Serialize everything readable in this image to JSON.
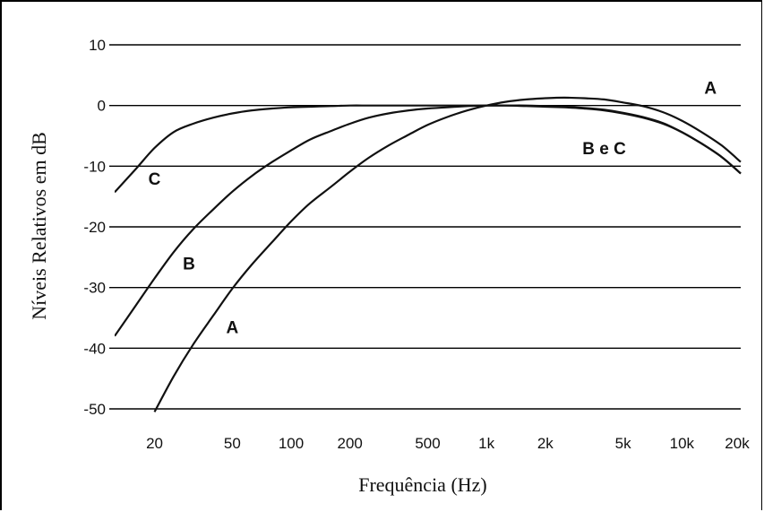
{
  "chart_data": {
    "type": "line",
    "title": "",
    "xlabel": "Frequência (Hz)",
    "ylabel": "Níveis Relativos em dB",
    "xscale": "log",
    "xlim": [
      12.5,
      20000
    ],
    "ylim": [
      -50,
      10
    ],
    "x_ticks": [
      {
        "value": 20,
        "label": "20"
      },
      {
        "value": 50,
        "label": "50"
      },
      {
        "value": 100,
        "label": "100"
      },
      {
        "value": 200,
        "label": "200"
      },
      {
        "value": 500,
        "label": "500"
      },
      {
        "value": 1000,
        "label": "1k"
      },
      {
        "value": 2000,
        "label": "2k"
      },
      {
        "value": 5000,
        "label": "5k"
      },
      {
        "value": 10000,
        "label": "10k"
      },
      {
        "value": 20000,
        "label": "20k"
      }
    ],
    "y_ticks": [
      10,
      0,
      -10,
      -20,
      -30,
      -40,
      -50
    ],
    "grid": "horizontal",
    "series": [
      {
        "name": "A",
        "x": [
          20,
          25,
          31.5,
          40,
          50,
          63,
          80,
          100,
          125,
          160,
          200,
          250,
          315,
          400,
          500,
          630,
          800,
          1000,
          1250,
          1600,
          2000,
          2500,
          3150,
          4000,
          5000,
          6300,
          8000,
          10000,
          12500,
          16000,
          20000
        ],
        "y": [
          -50.5,
          -44.7,
          -39.4,
          -34.6,
          -30.2,
          -26.2,
          -22.5,
          -19.1,
          -16.1,
          -13.4,
          -10.9,
          -8.6,
          -6.6,
          -4.8,
          -3.2,
          -1.9,
          -0.8,
          0,
          0.6,
          1.0,
          1.2,
          1.3,
          1.2,
          1.0,
          0.5,
          -0.1,
          -1.1,
          -2.5,
          -4.3,
          -6.6,
          -9.3
        ]
      },
      {
        "name": "B",
        "x": [
          12.5,
          16,
          20,
          25,
          31.5,
          40,
          50,
          63,
          80,
          100,
          125,
          160,
          200,
          250,
          315,
          400,
          500,
          630,
          800,
          1000,
          1250,
          1600,
          2000,
          2500,
          3150,
          4000,
          5000,
          6300,
          8000,
          10000,
          12500,
          16000,
          20000
        ],
        "y": [
          -38,
          -33,
          -28.5,
          -24.2,
          -20.4,
          -17.1,
          -14.2,
          -11.6,
          -9.3,
          -7.4,
          -5.6,
          -4.2,
          -3.0,
          -2.0,
          -1.3,
          -0.8,
          -0.5,
          -0.3,
          -0.1,
          0,
          0,
          0,
          -0.1,
          -0.2,
          -0.4,
          -0.7,
          -1.2,
          -1.9,
          -2.9,
          -4.4,
          -6.2,
          -8.5,
          -11.2
        ]
      },
      {
        "name": "C",
        "x": [
          12.5,
          16,
          20,
          25,
          31.5,
          40,
          50,
          63,
          80,
          100,
          125,
          160,
          200,
          250,
          315,
          400,
          500,
          630,
          800,
          1000,
          1250,
          1600,
          2000,
          2500,
          3150,
          4000,
          5000,
          6300,
          8000,
          10000,
          12500,
          16000,
          20000
        ],
        "y": [
          -14.3,
          -10.5,
          -7.0,
          -4.4,
          -3.0,
          -2.0,
          -1.3,
          -0.8,
          -0.5,
          -0.3,
          -0.2,
          -0.1,
          0,
          0,
          0,
          0,
          0,
          0,
          0,
          0,
          0,
          -0.1,
          -0.2,
          -0.3,
          -0.5,
          -0.8,
          -1.3,
          -2.0,
          -3.0,
          -4.4,
          -6.2,
          -8.5,
          -11.2
        ]
      }
    ],
    "annotations": [
      {
        "text": "A",
        "x": 14000,
        "y": 3
      },
      {
        "text": "B e C",
        "x": 4000,
        "y": -7
      },
      {
        "text": "C",
        "x": 20,
        "y": -12
      },
      {
        "text": "B",
        "x": 30,
        "y": -26
      },
      {
        "text": "A",
        "x": 50,
        "y": -36.5
      }
    ]
  }
}
